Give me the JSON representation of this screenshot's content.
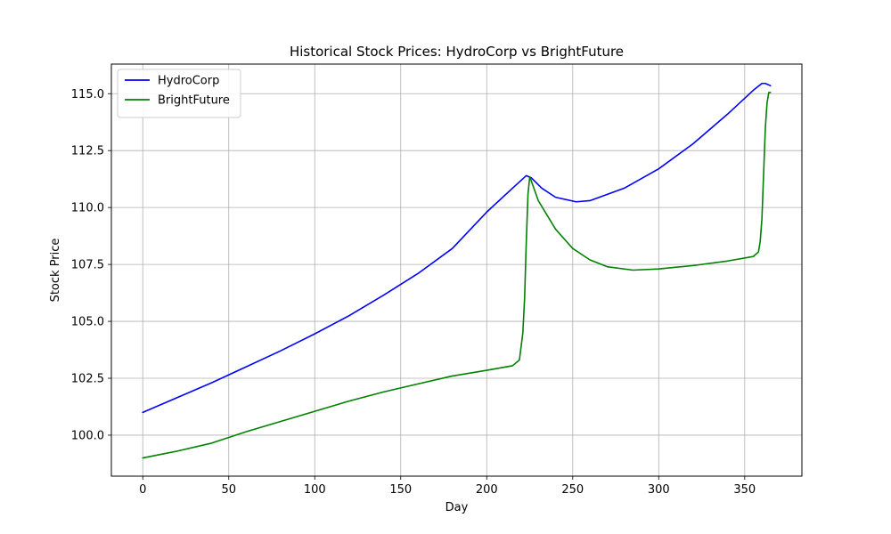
{
  "chart_data": {
    "type": "line",
    "title": "Historical Stock Prices: HydroCorp vs BrightFuture",
    "xlabel": "Day",
    "ylabel": "Stock Price",
    "xlim": [
      -18.25,
      383.25
    ],
    "ylim": [
      98.2,
      116.3
    ],
    "xticks": [
      0,
      50,
      100,
      150,
      200,
      250,
      300,
      350
    ],
    "xtick_labels": [
      "0",
      "50",
      "100",
      "150",
      "200",
      "250",
      "300",
      "350"
    ],
    "yticks": [
      100.0,
      102.5,
      105.0,
      107.5,
      110.0,
      112.5,
      115.0
    ],
    "ytick_labels": [
      "100.0",
      "102.5",
      "105.0",
      "107.5",
      "110.0",
      "112.5",
      "115.0"
    ],
    "grid": true,
    "legend_position": "top-left",
    "series": [
      {
        "name": "HydroCorp",
        "color": "#0000ff",
        "x": [
          0,
          20,
          40,
          60,
          80,
          100,
          120,
          140,
          160,
          180,
          200,
          215,
          223,
          226,
          232,
          240,
          252,
          260,
          280,
          300,
          320,
          340,
          355,
          360,
          362,
          365
        ],
        "y": [
          101.0,
          101.65,
          102.3,
          103.0,
          103.7,
          104.45,
          105.25,
          106.15,
          107.1,
          108.2,
          109.8,
          110.85,
          111.4,
          111.3,
          110.85,
          110.45,
          110.25,
          110.3,
          110.85,
          111.7,
          112.8,
          114.1,
          115.15,
          115.45,
          115.45,
          115.35
        ]
      },
      {
        "name": "BrightFuture",
        "color": "#008000",
        "x": [
          0,
          20,
          40,
          60,
          80,
          100,
          120,
          140,
          160,
          180,
          200,
          215,
          219,
          221,
          222,
          223,
          224,
          225,
          226,
          230,
          240,
          250,
          260,
          270,
          285,
          300,
          320,
          340,
          355,
          358,
          359,
          360,
          361,
          362,
          363,
          364,
          365
        ],
        "y": [
          99.0,
          99.3,
          99.65,
          100.15,
          100.6,
          101.05,
          101.5,
          101.9,
          102.25,
          102.6,
          102.85,
          103.05,
          103.3,
          104.5,
          106.0,
          108.5,
          110.6,
          111.35,
          111.15,
          110.3,
          109.05,
          108.2,
          107.7,
          107.4,
          107.25,
          107.3,
          107.45,
          107.65,
          107.85,
          108.05,
          108.5,
          109.5,
          111.5,
          113.5,
          114.6,
          115.05,
          115.05
        ]
      }
    ]
  }
}
